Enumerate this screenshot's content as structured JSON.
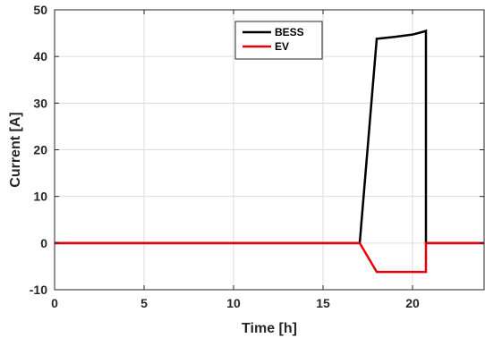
{
  "chart_data": {
    "type": "line",
    "xlabel": "Time [h]",
    "ylabel": "Current [A]",
    "xlim": [
      0,
      24
    ],
    "ylim": [
      -10,
      50
    ],
    "xticks": [
      0,
      5,
      10,
      15,
      20
    ],
    "yticks": [
      -10,
      0,
      10,
      20,
      30,
      40,
      50
    ],
    "grid": true,
    "legend_position": "top-center",
    "series": [
      {
        "name": "BESS",
        "color": "#000000",
        "x": [
          0,
          17.05,
          18.0,
          19.0,
          20.0,
          20.6,
          20.75,
          20.75,
          24
        ],
        "y": [
          0,
          0,
          43.8,
          44.2,
          44.7,
          45.3,
          45.5,
          0,
          0
        ]
      },
      {
        "name": "EV",
        "color": "#e8000b",
        "x": [
          0,
          17.05,
          18.0,
          20.75,
          20.75,
          24
        ],
        "y": [
          0,
          0,
          -6.2,
          -6.2,
          0,
          0
        ]
      }
    ]
  }
}
